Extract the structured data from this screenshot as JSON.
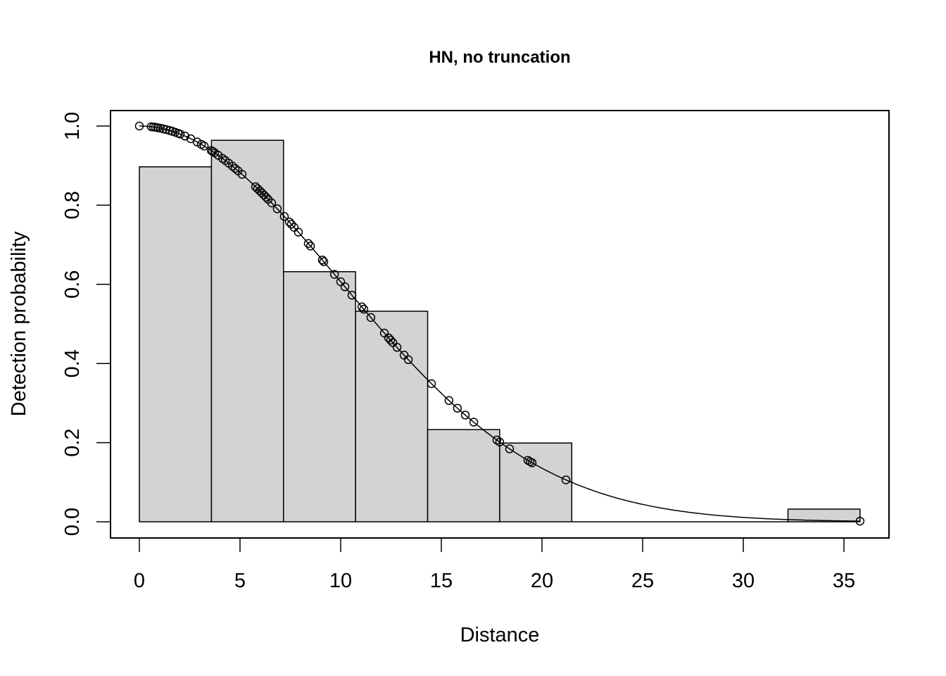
{
  "chart_data": {
    "type": "bar",
    "title": "HN, no truncation",
    "xlabel": "Distance",
    "ylabel": "Detection probability",
    "xlim": [
      0,
      35.8
    ],
    "ylim": [
      0,
      1
    ],
    "x_ticks": [
      "0",
      "5",
      "10",
      "15",
      "20",
      "25",
      "30",
      "35"
    ],
    "y_ticks": [
      "0.0",
      "0.2",
      "0.4",
      "0.6",
      "0.8",
      "1.0"
    ],
    "grid": false,
    "legend": "none",
    "histogram": {
      "bin_edges": [
        0,
        3.58,
        7.16,
        10.74,
        14.32,
        17.9,
        21.48,
        25.06,
        28.64,
        32.22,
        35.8
      ],
      "values": [
        0.897,
        0.964,
        0.632,
        0.532,
        0.233,
        0.199,
        0,
        0,
        0,
        0.032
      ],
      "fill": "#d3d3d3"
    },
    "fitted_curve": {
      "model": "half-normal",
      "sigma": 10
    },
    "observed_points": {
      "x": [
        0,
        0.59,
        0.7,
        0.8,
        0.91,
        1.05,
        1.19,
        1.33,
        1.5,
        1.64,
        1.78,
        1.92,
        2.03,
        2.27,
        2.55,
        2.87,
        3.08,
        3.22,
        3.57,
        3.64,
        3.74,
        3.92,
        4.13,
        4.27,
        4.44,
        4.62,
        4.76,
        4.9,
        5.1,
        5.77,
        5.87,
        5.98,
        6.08,
        6.19,
        6.29,
        6.4,
        6.57,
        6.85,
        7.2,
        7.45,
        7.55,
        7.69,
        7.9,
        8.39,
        8.5,
        9.09,
        9.16,
        9.69,
        10.0,
        10.21,
        10.56,
        11.05,
        11.15,
        11.5,
        12.17,
        12.38,
        12.48,
        12.59,
        12.8,
        13.15,
        13.36,
        14.51,
        15.38,
        15.8,
        16.19,
        16.61,
        17.76,
        17.9,
        18.39,
        19.3,
        19.41,
        19.51,
        21.19,
        35.8
      ]
    }
  }
}
